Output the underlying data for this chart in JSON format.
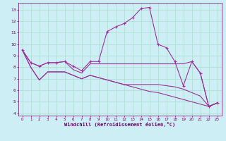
{
  "xlabel": "Windchill (Refroidissement éolien,°C)",
  "bg_color": "#ceeef5",
  "grid_color": "#aaddcc",
  "line_color": "#993399",
  "xlim": [
    -0.5,
    23.5
  ],
  "ylim": [
    3.8,
    13.6
  ],
  "xticks": [
    0,
    1,
    2,
    3,
    4,
    5,
    6,
    7,
    8,
    9,
    10,
    11,
    12,
    13,
    14,
    15,
    16,
    17,
    18,
    19,
    20,
    21,
    22,
    23
  ],
  "yticks": [
    4,
    5,
    6,
    7,
    8,
    9,
    10,
    11,
    12,
    13
  ],
  "series": [
    [
      9.5,
      8.4,
      8.1,
      8.4,
      8.4,
      8.5,
      8.1,
      7.7,
      8.5,
      8.5,
      11.1,
      11.5,
      11.8,
      12.3,
      13.1,
      13.2,
      10.0,
      9.7,
      8.5,
      6.4,
      8.5,
      7.5,
      4.6,
      4.9
    ],
    [
      9.5,
      8.4,
      8.1,
      8.4,
      8.4,
      8.5,
      7.8,
      7.5,
      8.3,
      8.3,
      8.3,
      8.3,
      8.3,
      8.3,
      8.3,
      8.3,
      8.3,
      8.3,
      8.3,
      8.3,
      8.5,
      7.5,
      4.6,
      4.9
    ],
    [
      9.5,
      8.0,
      6.9,
      7.6,
      7.6,
      7.6,
      7.3,
      7.0,
      7.3,
      7.1,
      6.9,
      6.7,
      6.5,
      6.5,
      6.5,
      6.5,
      6.5,
      6.4,
      6.3,
      6.1,
      5.8,
      5.5,
      4.6,
      4.9
    ],
    [
      9.5,
      8.0,
      6.9,
      7.6,
      7.6,
      7.6,
      7.3,
      7.0,
      7.3,
      7.1,
      6.9,
      6.7,
      6.5,
      6.3,
      6.1,
      5.9,
      5.8,
      5.6,
      5.4,
      5.2,
      5.0,
      4.8,
      4.6,
      4.9
    ]
  ]
}
